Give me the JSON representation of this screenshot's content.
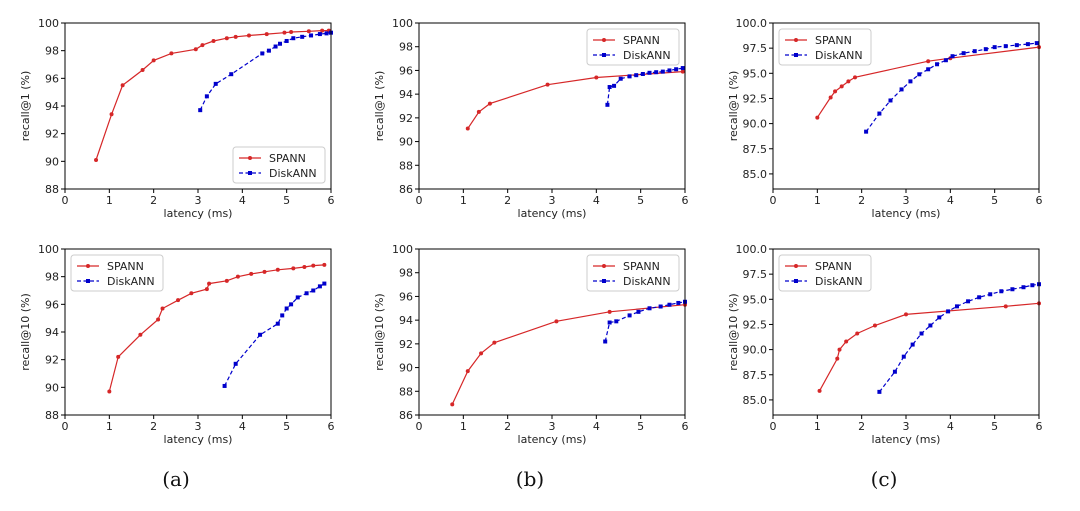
{
  "figure": {
    "captions": [
      "(a)",
      "(b)",
      "(c)"
    ],
    "colors": {
      "SPANN": "#d62728",
      "DiskANN": "#0000cc"
    }
  },
  "chart_data": [
    {
      "type": "line",
      "column": 0,
      "row": 0,
      "xlabel": "latency (ms)",
      "ylabel": "recall@1 (%)",
      "xlim": [
        0,
        6
      ],
      "ylim": [
        88,
        100
      ],
      "xticks": [
        "0",
        "1",
        "2",
        "3",
        "4",
        "5",
        "6"
      ],
      "yticks": [
        "88",
        "90",
        "92",
        "94",
        "96",
        "98",
        "100"
      ],
      "legend_position": "bottom-right",
      "series": [
        {
          "name": "SPANN",
          "style": "solid-circle",
          "x": [
            0.7,
            1.05,
            1.3,
            1.75,
            2.0,
            2.4,
            2.95,
            3.1,
            3.35,
            3.65,
            3.85,
            4.15,
            4.55,
            4.95,
            5.1,
            5.5,
            5.8,
            5.95
          ],
          "y": [
            90.1,
            93.4,
            95.5,
            96.6,
            97.3,
            97.8,
            98.1,
            98.4,
            98.7,
            98.9,
            99.0,
            99.1,
            99.2,
            99.3,
            99.35,
            99.4,
            99.45,
            99.45
          ]
        },
        {
          "name": "DiskANN",
          "style": "dashed-square",
          "x": [
            3.05,
            3.2,
            3.4,
            3.75,
            4.45,
            4.6,
            4.75,
            4.85,
            5.0,
            5.15,
            5.35,
            5.55,
            5.75,
            5.9,
            6.0
          ],
          "y": [
            93.7,
            94.7,
            95.6,
            96.3,
            97.8,
            98.0,
            98.3,
            98.5,
            98.7,
            98.9,
            99.0,
            99.1,
            99.2,
            99.25,
            99.3
          ]
        }
      ]
    },
    {
      "type": "line",
      "column": 1,
      "row": 0,
      "xlabel": "latency (ms)",
      "ylabel": "recall@1 (%)",
      "xlim": [
        0,
        6
      ],
      "ylim": [
        86,
        100
      ],
      "xticks": [
        "0",
        "1",
        "2",
        "3",
        "4",
        "5",
        "6"
      ],
      "yticks": [
        "86",
        "88",
        "90",
        "92",
        "94",
        "96",
        "98",
        "100"
      ],
      "legend_position": "top-right",
      "series": [
        {
          "name": "SPANN",
          "style": "solid-circle",
          "x": [
            1.1,
            1.35,
            1.6,
            2.9,
            4.0,
            5.95
          ],
          "y": [
            91.1,
            92.5,
            93.2,
            94.8,
            95.4,
            95.9
          ]
        },
        {
          "name": "DiskANN",
          "style": "dashed-square",
          "x": [
            4.25,
            4.3,
            4.4,
            4.55,
            4.75,
            4.9,
            5.05,
            5.2,
            5.35,
            5.5,
            5.65,
            5.8,
            5.95
          ],
          "y": [
            93.1,
            94.6,
            94.7,
            95.3,
            95.5,
            95.6,
            95.7,
            95.8,
            95.85,
            95.9,
            96.0,
            96.1,
            96.2
          ]
        }
      ]
    },
    {
      "type": "line",
      "column": 2,
      "row": 0,
      "xlabel": "latency (ms)",
      "ylabel": "recall@1 (%)",
      "xlim": [
        0,
        6
      ],
      "ylim": [
        83.5,
        100
      ],
      "xticks": [
        "0",
        "1",
        "2",
        "3",
        "4",
        "5",
        "6"
      ],
      "yticks": [
        "85.0",
        "87.5",
        "90.0",
        "92.5",
        "95.0",
        "97.5",
        "100.0"
      ],
      "legend_position": "top-left",
      "series": [
        {
          "name": "SPANN",
          "style": "solid-circle",
          "x": [
            1.0,
            1.3,
            1.4,
            1.55,
            1.7,
            1.85,
            3.5,
            4.0,
            6.0
          ],
          "y": [
            90.6,
            92.6,
            93.2,
            93.7,
            94.2,
            94.6,
            96.2,
            96.5,
            97.6
          ]
        },
        {
          "name": "DiskANN",
          "style": "dashed-square",
          "x": [
            2.1,
            2.4,
            2.65,
            2.9,
            3.1,
            3.3,
            3.5,
            3.7,
            3.9,
            4.05,
            4.3,
            4.55,
            4.8,
            5.0,
            5.25,
            5.5,
            5.75,
            5.95
          ],
          "y": [
            89.2,
            91.0,
            92.3,
            93.4,
            94.2,
            94.9,
            95.4,
            95.9,
            96.3,
            96.7,
            97.0,
            97.2,
            97.4,
            97.6,
            97.7,
            97.8,
            97.9,
            98.0
          ]
        }
      ]
    },
    {
      "type": "line",
      "column": 0,
      "row": 1,
      "xlabel": "latency (ms)",
      "ylabel": "recall@10 (%)",
      "xlim": [
        0,
        6
      ],
      "ylim": [
        88,
        100
      ],
      "xticks": [
        "0",
        "1",
        "2",
        "3",
        "4",
        "5",
        "6"
      ],
      "yticks": [
        "88",
        "90",
        "92",
        "94",
        "96",
        "98",
        "100"
      ],
      "legend_position": "top-left",
      "series": [
        {
          "name": "SPANN",
          "style": "solid-circle",
          "x": [
            1.0,
            1.2,
            1.7,
            2.1,
            2.2,
            2.55,
            2.85,
            3.2,
            3.25,
            3.65,
            3.9,
            4.2,
            4.5,
            4.8,
            5.15,
            5.4,
            5.6,
            5.85
          ],
          "y": [
            89.7,
            92.2,
            93.8,
            94.9,
            95.7,
            96.3,
            96.8,
            97.1,
            97.5,
            97.7,
            98.0,
            98.2,
            98.35,
            98.5,
            98.6,
            98.7,
            98.8,
            98.85
          ]
        },
        {
          "name": "DiskANN",
          "style": "dashed-square",
          "x": [
            3.6,
            3.85,
            4.4,
            4.8,
            4.9,
            5.0,
            5.1,
            5.25,
            5.45,
            5.6,
            5.75,
            5.85
          ],
          "y": [
            90.1,
            91.7,
            93.8,
            94.6,
            95.2,
            95.7,
            96.0,
            96.5,
            96.8,
            97.0,
            97.3,
            97.5
          ]
        }
      ]
    },
    {
      "type": "line",
      "column": 1,
      "row": 1,
      "xlabel": "latency (ms)",
      "ylabel": "recall@10 (%)",
      "xlim": [
        0,
        6
      ],
      "ylim": [
        86,
        100
      ],
      "xticks": [
        "0",
        "1",
        "2",
        "3",
        "4",
        "5",
        "6"
      ],
      "yticks": [
        "86",
        "88",
        "90",
        "92",
        "94",
        "96",
        "98",
        "100"
      ],
      "legend_position": "top-right",
      "series": [
        {
          "name": "SPANN",
          "style": "solid-circle",
          "x": [
            0.75,
            1.1,
            1.4,
            1.7,
            3.1,
            4.3,
            6.0
          ],
          "y": [
            86.9,
            89.7,
            91.2,
            92.1,
            93.9,
            94.7,
            95.3
          ]
        },
        {
          "name": "DiskANN",
          "style": "dashed-square",
          "x": [
            4.2,
            4.3,
            4.45,
            4.75,
            4.95,
            5.2,
            5.45,
            5.65,
            5.85,
            6.0
          ],
          "y": [
            92.2,
            93.8,
            93.9,
            94.4,
            94.7,
            95.0,
            95.15,
            95.3,
            95.45,
            95.55
          ]
        }
      ]
    },
    {
      "type": "line",
      "column": 2,
      "row": 1,
      "xlabel": "latency (ms)",
      "ylabel": "recall@10 (%)",
      "xlim": [
        0,
        6
      ],
      "ylim": [
        83.5,
        100
      ],
      "xticks": [
        "0",
        "1",
        "2",
        "3",
        "4",
        "5",
        "6"
      ],
      "yticks": [
        "85.0",
        "87.5",
        "90.0",
        "92.5",
        "95.0",
        "97.5",
        "100.0"
      ],
      "legend_position": "top-left",
      "series": [
        {
          "name": "SPANN",
          "style": "solid-circle",
          "x": [
            1.05,
            1.45,
            1.5,
            1.65,
            1.9,
            2.3,
            3.0,
            5.25,
            6.0
          ],
          "y": [
            85.9,
            89.1,
            90.0,
            90.8,
            91.6,
            92.4,
            93.5,
            94.3,
            94.6
          ]
        },
        {
          "name": "DiskANN",
          "style": "dashed-square",
          "x": [
            2.4,
            2.75,
            2.95,
            3.15,
            3.35,
            3.55,
            3.75,
            3.95,
            4.15,
            4.4,
            4.65,
            4.9,
            5.15,
            5.4,
            5.65,
            5.85,
            6.0
          ],
          "y": [
            85.8,
            87.8,
            89.3,
            90.5,
            91.6,
            92.4,
            93.2,
            93.8,
            94.3,
            94.8,
            95.2,
            95.5,
            95.8,
            96.0,
            96.2,
            96.4,
            96.5
          ]
        }
      ]
    }
  ]
}
